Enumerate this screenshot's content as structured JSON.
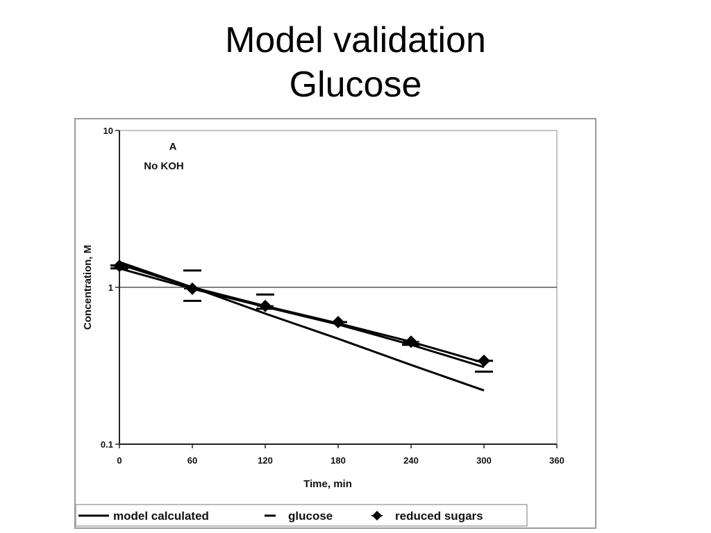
{
  "slide": {
    "title_line1": "Model validation",
    "title_line2": "Glucose"
  },
  "chart_data": {
    "type": "line",
    "title": "",
    "xlabel": "Time, min",
    "ylabel": "Concentration, M",
    "xlim": [
      0,
      360
    ],
    "ylim": [
      0.1,
      10
    ],
    "yscale": "log",
    "x_ticks": [
      0,
      60,
      120,
      180,
      240,
      300,
      360
    ],
    "x_tick_labels": [
      "0",
      "60",
      "120",
      "180",
      "240",
      "300",
      "360"
    ],
    "y_ticks": [
      0.1,
      1,
      10
    ],
    "y_tick_labels": [
      "0.1",
      "1",
      "10"
    ],
    "grid": "horizontal at 1",
    "annotation": {
      "line1": "A",
      "line2": "No KOH"
    },
    "legend_position": "bottom-left",
    "series": [
      {
        "name": "model calculated",
        "marker": "none",
        "curves": [
          {
            "x": [
              0,
              60,
              120,
              180,
              240,
              300
            ],
            "y": [
              1.45,
              1.0,
              0.68,
              0.47,
              0.32,
              0.22
            ]
          },
          {
            "x": [
              0,
              60,
              120,
              180,
              240,
              300
            ],
            "y": [
              1.4,
              1.0,
              0.76,
              0.59,
              0.45,
              0.33
            ]
          },
          {
            "x": [
              0,
              60,
              120,
              180,
              240,
              300
            ],
            "y": [
              1.32,
              0.98,
              0.75,
              0.58,
              0.43,
              0.31
            ]
          }
        ]
      },
      {
        "name": "glucose",
        "marker": "dash",
        "x": [
          0,
          0,
          60,
          60,
          120,
          120,
          180,
          240,
          300,
          300
        ],
        "y": [
          1.38,
          1.32,
          1.28,
          0.82,
          0.9,
          0.73,
          0.6,
          0.43,
          0.34,
          0.29
        ]
      },
      {
        "name": "reduced sugars",
        "marker": "diamond",
        "x": [
          0,
          60,
          120,
          180,
          240,
          300
        ],
        "y": [
          1.37,
          0.98,
          0.76,
          0.6,
          0.45,
          0.34
        ]
      }
    ]
  }
}
